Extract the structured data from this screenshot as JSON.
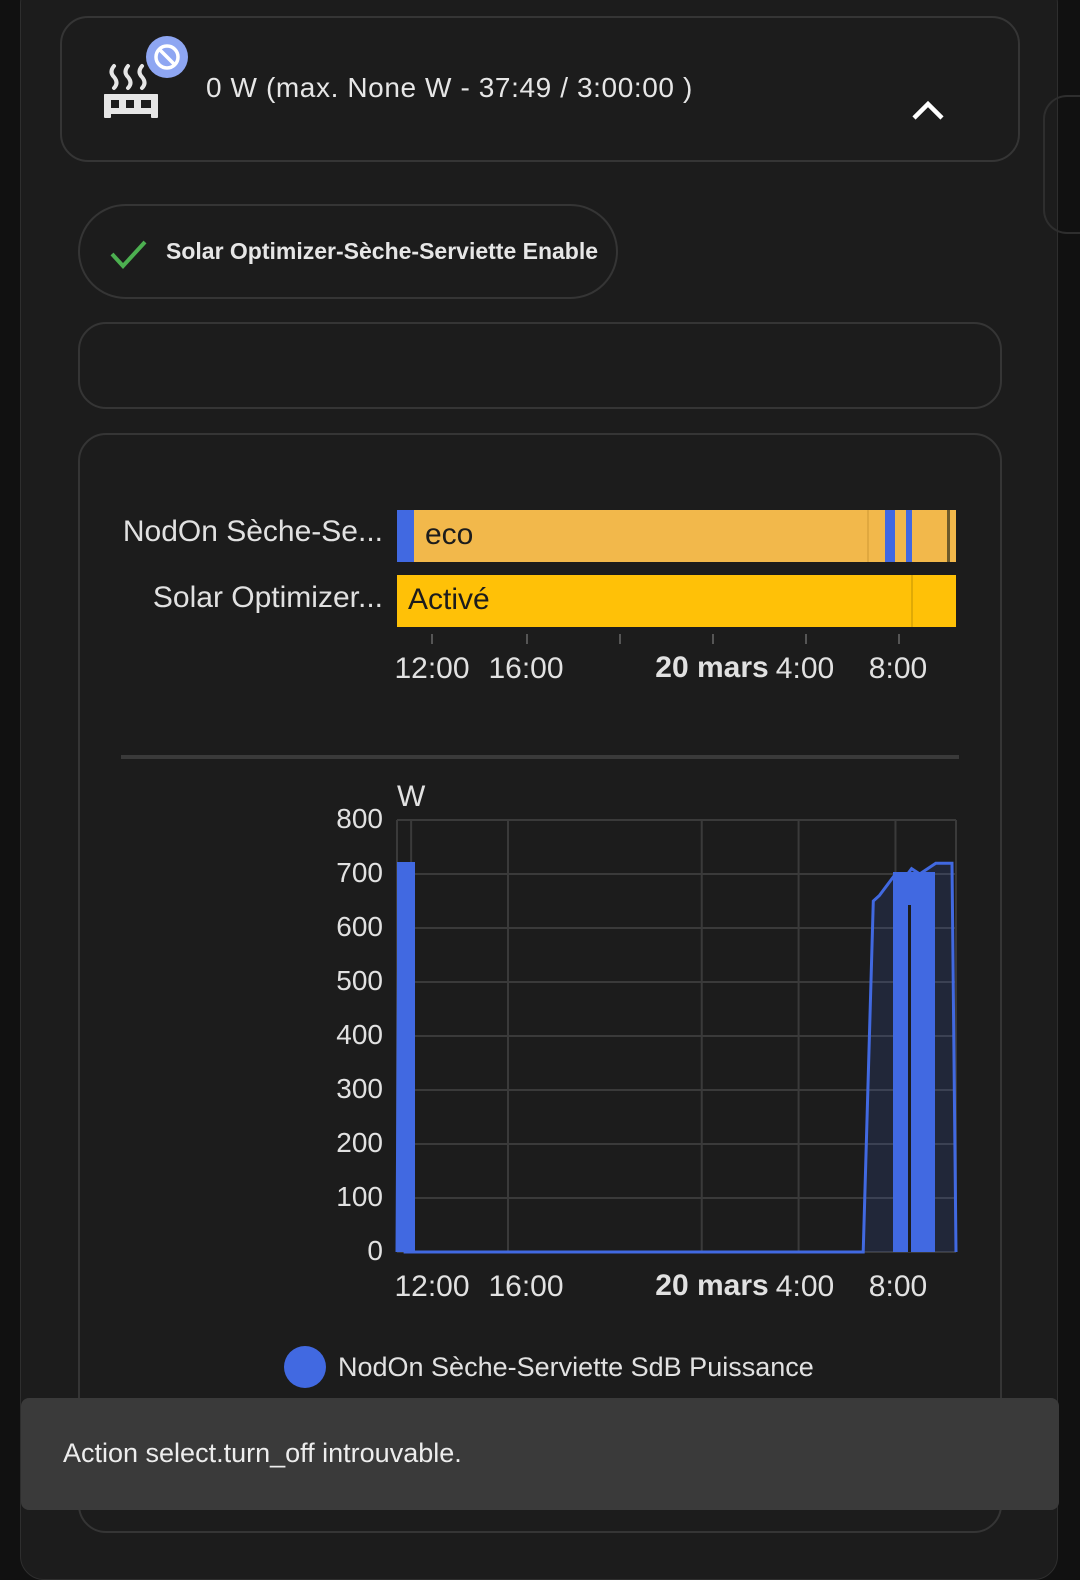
{
  "header": {
    "status_text": "0 W (max. None W - 37:49 / 3:00:00 )",
    "device_icon": "radiator-icon",
    "badge_icon": "cancel-icon",
    "toggle_icon": "chevron-up-icon"
  },
  "chip": {
    "label": "Solar Optimizer-Sèche-Serviette Enable",
    "icon": "check-icon",
    "icon_color": "#4caf50"
  },
  "timeline": {
    "rows": [
      {
        "label": "NodOn Sèche-Se...",
        "state_text": "eco",
        "color": "#f2b84b",
        "alt_color": "#4169e1"
      },
      {
        "label": "Solar Optimizer...",
        "state_text": "Activé",
        "color": "#ffc107"
      }
    ],
    "x_ticks": [
      {
        "label": "12:00",
        "bold": false
      },
      {
        "label": "16:00",
        "bold": false
      },
      {
        "label": "20 mars",
        "bold": true
      },
      {
        "label": "4:00",
        "bold": false
      },
      {
        "label": "8:00",
        "bold": false
      }
    ]
  },
  "chart_data": {
    "type": "line",
    "unit": "W",
    "ylim": [
      0,
      800
    ],
    "y_ticks": [
      "0",
      "100",
      "200",
      "300",
      "400",
      "500",
      "600",
      "700",
      "800"
    ],
    "x_ticks": [
      {
        "label": "12:00",
        "bold": false
      },
      {
        "label": "16:00",
        "bold": false
      },
      {
        "label": "20 mars",
        "bold": true
      },
      {
        "label": "4:00",
        "bold": false
      },
      {
        "label": "8:00",
        "bold": false
      }
    ],
    "grid": true,
    "series": [
      {
        "name": "NodOn Sèche-Serviette SdB Puissance",
        "color": "#4169e1",
        "x": [
          "19 mars 11:25",
          "19 mars 11:30",
          "19 mars 11:35",
          "19 mars 11:40",
          "19 mars 11:45",
          "19 mars 12:00",
          "19 mars 16:00",
          "20 mars 4:00",
          "20 mars 6:40",
          "20 mars 7:05",
          "20 mars 7:20",
          "20 mars 7:40",
          "20 mars 8:00",
          "20 mars 8:20",
          "20 mars 8:40",
          "20 mars 9:00",
          "20 mars 9:40",
          "20 mars 10:20",
          "20 mars 10:30"
        ],
        "y": [
          0,
          700,
          720,
          700,
          0,
          0,
          0,
          0,
          0,
          650,
          660,
          680,
          700,
          690,
          710,
          700,
          720,
          720,
          0
        ]
      }
    ]
  },
  "toast": {
    "message": "Action select.turn_off introuvable."
  }
}
